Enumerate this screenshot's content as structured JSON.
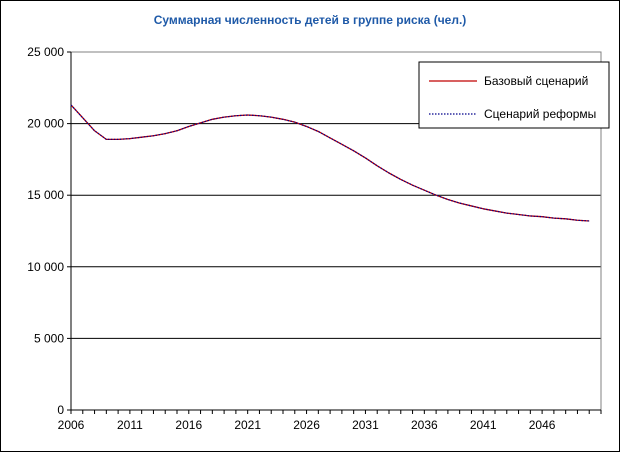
{
  "chart_data": {
    "type": "line",
    "title": "Суммарная численность детей в группе риска (чел.)",
    "xlabel": "",
    "ylabel": "",
    "x": [
      2006,
      2007,
      2008,
      2009,
      2010,
      2011,
      2012,
      2013,
      2014,
      2015,
      2016,
      2017,
      2018,
      2019,
      2020,
      2021,
      2022,
      2023,
      2024,
      2025,
      2026,
      2027,
      2028,
      2029,
      2030,
      2031,
      2032,
      2033,
      2034,
      2035,
      2036,
      2037,
      2038,
      2039,
      2040,
      2041,
      2042,
      2043,
      2044,
      2045,
      2046,
      2047,
      2048,
      2049,
      2050
    ],
    "xticks": [
      "2006",
      "2011",
      "2016",
      "2021",
      "2026",
      "2031",
      "2036",
      "2041",
      "2046"
    ],
    "yticks": [
      "0",
      "5 000",
      "10 000",
      "15 000",
      "20 000",
      "25 000"
    ],
    "ytick_values": [
      0,
      5000,
      10000,
      15000,
      20000,
      25000
    ],
    "xlim": [
      2006,
      2051
    ],
    "ylim": [
      0,
      25000
    ],
    "grid": "horizontal",
    "legend_position": "top-right",
    "series": [
      {
        "name": "Базовый сценарий",
        "color": "#c00000",
        "style": "solid",
        "values": [
          21300,
          20400,
          19500,
          18900,
          18900,
          18950,
          19050,
          19150,
          19300,
          19500,
          19800,
          20050,
          20300,
          20450,
          20550,
          20600,
          20550,
          20450,
          20300,
          20100,
          19800,
          19450,
          19000,
          18550,
          18100,
          17600,
          17050,
          16550,
          16100,
          15700,
          15350,
          15000,
          14700,
          14450,
          14250,
          14050,
          13900,
          13750,
          13650,
          13550,
          13500,
          13400,
          13350,
          13250,
          13200
        ]
      },
      {
        "name": "Сценарий реформы",
        "color": "#00008b",
        "style": "dotted",
        "values": [
          21300,
          20400,
          19500,
          18900,
          18900,
          18950,
          19050,
          19150,
          19300,
          19500,
          19800,
          20050,
          20300,
          20450,
          20550,
          20600,
          20550,
          20450,
          20300,
          20100,
          19800,
          19450,
          19000,
          18550,
          18100,
          17600,
          17050,
          16550,
          16100,
          15700,
          15350,
          15000,
          14700,
          14450,
          14250,
          14050,
          13900,
          13750,
          13650,
          13550,
          13500,
          13400,
          13350,
          13250,
          13200
        ]
      }
    ]
  }
}
